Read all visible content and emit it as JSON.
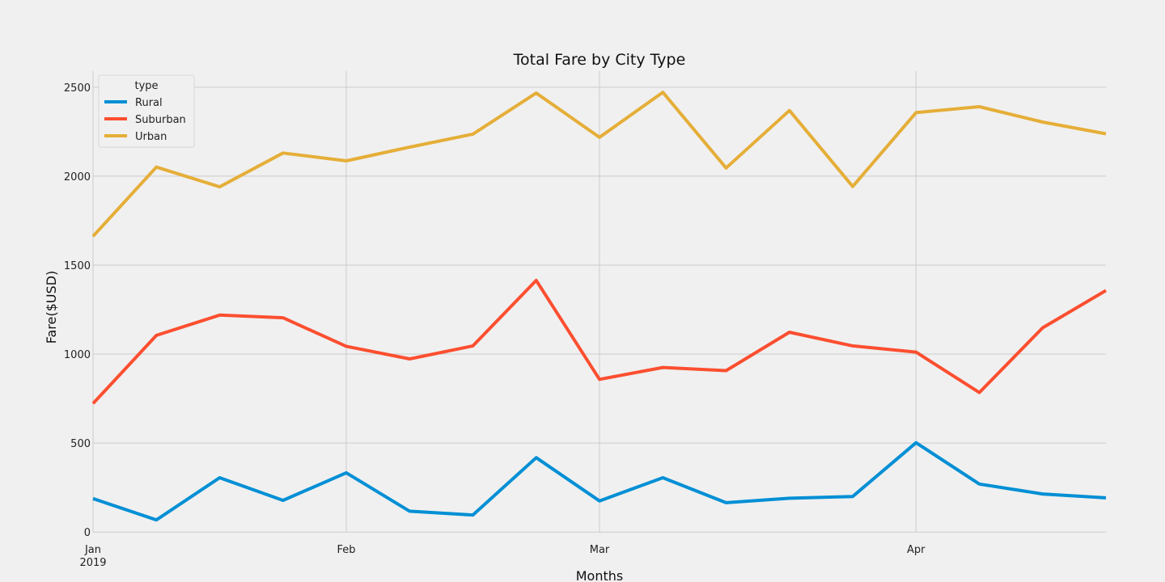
{
  "chart_data": {
    "type": "line",
    "title": "Total Fare by City Type",
    "xlabel": "Months",
    "ylabel": "Fare($USD)",
    "legend_title": "type",
    "legend_position": "top-left",
    "grid": true,
    "x": [
      "2019-01-06",
      "2019-01-13",
      "2019-01-20",
      "2019-01-27",
      "2019-02-03",
      "2019-02-10",
      "2019-02-17",
      "2019-02-24",
      "2019-03-03",
      "2019-03-10",
      "2019-03-17",
      "2019-03-24",
      "2019-03-31",
      "2019-04-07",
      "2019-04-14",
      "2019-04-21",
      "2019-04-28"
    ],
    "xlim": [
      "2019-01-06",
      "2019-04-28"
    ],
    "x_ticks": [
      {
        "date": "2019-01-06",
        "label": "Jan",
        "sublabel": "2019"
      },
      {
        "date": "2019-02-03",
        "label": "Feb",
        "sublabel": ""
      },
      {
        "date": "2019-03-03",
        "label": "Mar",
        "sublabel": ""
      },
      {
        "date": "2019-04-07",
        "label": "Apr",
        "sublabel": ""
      }
    ],
    "ylim": [
      -40,
      2590
    ],
    "y_ticks": [
      0,
      500,
      1000,
      1500,
      2000,
      2500
    ],
    "series": [
      {
        "name": "Rural",
        "color": "#008fd5",
        "values": [
          188,
          68,
          305,
          178,
          333,
          117,
          96,
          418,
          175,
          305,
          165,
          190,
          200,
          502,
          270,
          214,
          192
        ]
      },
      {
        "name": "Suburban",
        "color": "#fc4f30",
        "values": [
          722,
          1105,
          1219,
          1204,
          1044,
          973,
          1046,
          1414,
          858,
          925,
          907,
          1123,
          1046,
          1011,
          784,
          1148,
          1357
        ]
      },
      {
        "name": "Urban",
        "color": "#e5ae38",
        "values": [
          1662,
          2051,
          1940,
          2130,
          2086,
          2163,
          2236,
          2467,
          2218,
          2471,
          2046,
          2369,
          1942,
          2357,
          2390,
          2304,
          2238
        ]
      }
    ]
  }
}
